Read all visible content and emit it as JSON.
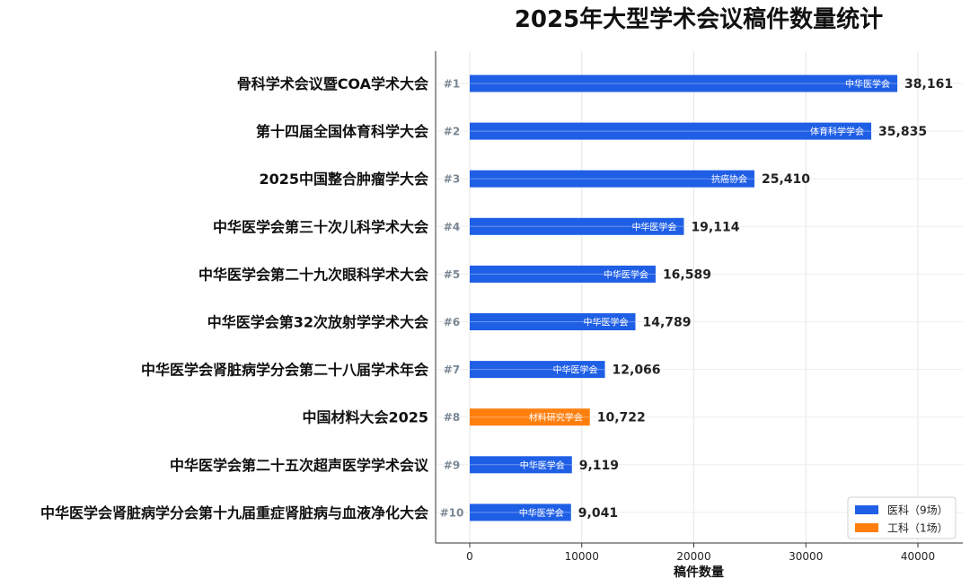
{
  "chart_data": {
    "type": "bar",
    "orientation": "horizontal",
    "title": "2025年大型学术会议稿件数量统计",
    "xlabel": "稿件数量",
    "ylabel": "",
    "xlim": [
      -3000,
      44000
    ],
    "xticks": [
      0,
      10000,
      20000,
      30000,
      40000
    ],
    "grid": true,
    "legend_position": "bottom-right",
    "categories": [
      "骨科学术会议暨COA学术大会",
      "第十四届全国体育科学大会",
      "2025中国整合肿瘤学大会",
      "中华医学会第三十次儿科学术大会",
      "中华医学会第二十九次眼科学术大会",
      "中华医学会第32次放射学学术大会",
      "中华医学会肾脏病学分会第二十八届学术年会",
      "中国材料大会2025",
      "中华医学会第二十五次超声医学学术会议",
      "中华医学会肾脏病学分会第十九届重症肾脏病与血液净化大会"
    ],
    "ranks": [
      "#1",
      "#2",
      "#3",
      "#4",
      "#5",
      "#6",
      "#7",
      "#8",
      "#9",
      "#10"
    ],
    "values": [
      38161,
      35835,
      25410,
      19114,
      16589,
      14789,
      12066,
      10722,
      9119,
      9041
    ],
    "value_labels": [
      "38,161",
      "35,835",
      "25,410",
      "19,114",
      "16,589",
      "14,789",
      "12,066",
      "10,722",
      "9,119",
      "9,041"
    ],
    "organizers": [
      "中华医学会",
      "体育科学学会",
      "抗癌协会",
      "中华医学会",
      "中华医学会",
      "中华医学会",
      "中华医学会",
      "材料研究学会",
      "中华医学会",
      "中华医学会"
    ],
    "groups": [
      "med",
      "med",
      "med",
      "med",
      "med",
      "med",
      "med",
      "eng",
      "med",
      "med"
    ],
    "series": [
      {
        "key": "med",
        "name": "医科（9场）",
        "color": "#1f5fe6"
      },
      {
        "key": "eng",
        "name": "工科（1场）",
        "color": "#ff7f0e"
      }
    ]
  }
}
